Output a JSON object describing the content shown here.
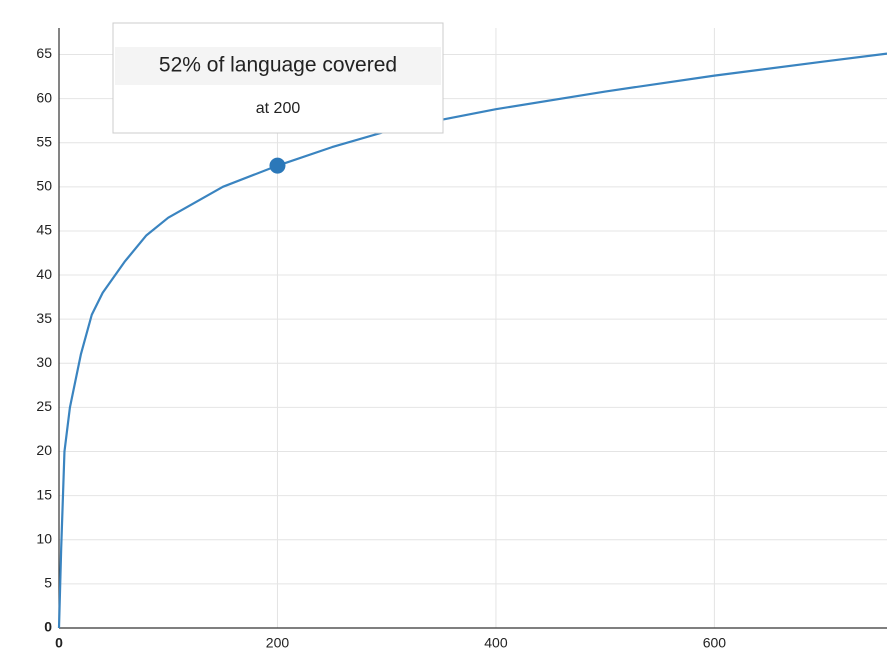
{
  "chart_data": {
    "type": "line",
    "x": [
      0,
      2,
      5,
      10,
      20,
      30,
      40,
      60,
      80,
      100,
      150,
      200,
      250,
      300,
      350,
      400,
      500,
      600,
      700,
      758
    ],
    "series": [
      {
        "color": "#3a84c0",
        "values": [
          0,
          9,
          20,
          25,
          31,
          35.5,
          38,
          41.5,
          44.5,
          46.5,
          50,
          52.4,
          54.5,
          56.3,
          57.6,
          58.8,
          60.8,
          62.6,
          64.2,
          65.1
        ]
      }
    ],
    "xlim": [
      0,
      758
    ],
    "ylim": [
      0,
      68
    ],
    "xticks": [
      0,
      200,
      400,
      600
    ],
    "yticks": [
      0,
      5,
      10,
      15,
      20,
      25,
      30,
      35,
      40,
      45,
      50,
      55,
      60,
      65
    ],
    "grid": true,
    "highlight_index": 11,
    "highlight_color": "#2b78b9",
    "tooltip": {
      "title": "52% of language covered",
      "text": "at 200"
    }
  }
}
